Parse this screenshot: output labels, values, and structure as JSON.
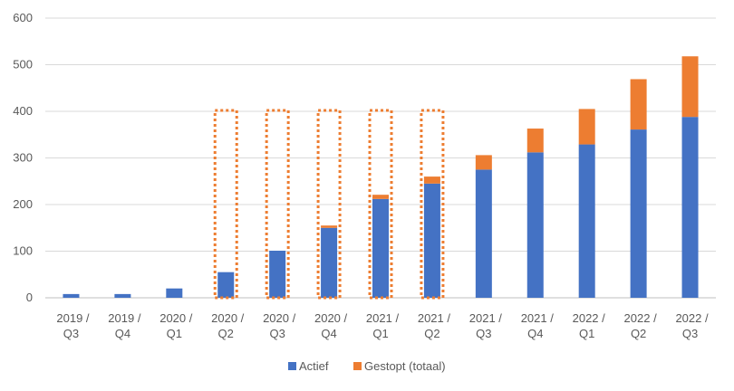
{
  "chart_data": {
    "type": "bar",
    "stacked": true,
    "title": "",
    "xlabel": "",
    "ylabel": "",
    "ylim": [
      0,
      600
    ],
    "yticks": [
      0,
      100,
      200,
      300,
      400,
      500,
      600
    ],
    "grid": true,
    "legend_position": "bottom",
    "categories": [
      [
        "2019 /",
        "Q3"
      ],
      [
        "2019 /",
        "Q4"
      ],
      [
        "2020 /",
        "Q1"
      ],
      [
        "2020 /",
        "Q2"
      ],
      [
        "2020 /",
        "Q3"
      ],
      [
        "2020 /",
        "Q4"
      ],
      [
        "2021 /",
        "Q1"
      ],
      [
        "2021 /",
        "Q2"
      ],
      [
        "2021 /",
        "Q3"
      ],
      [
        "2021 /",
        "Q4"
      ],
      [
        "2022 /",
        "Q1"
      ],
      [
        "2022 /",
        "Q2"
      ],
      [
        "2022 /",
        "Q3"
      ]
    ],
    "series": [
      {
        "name": "Actief",
        "color": "#4472C4",
        "values": [
          8,
          8,
          20,
          55,
          101,
          150,
          212,
          245,
          275,
          312,
          329,
          361,
          388
        ]
      },
      {
        "name": "Gestopt (totaal)",
        "color": "#ED7D31",
        "values": [
          0,
          0,
          0,
          0,
          0,
          5,
          9,
          15,
          31,
          51,
          76,
          108,
          130
        ]
      }
    ],
    "highlight_boxes": {
      "categories": [
        3,
        4,
        5,
        6,
        7
      ],
      "top_value": 400,
      "color": "#ED7D31",
      "style": "dotted"
    }
  }
}
